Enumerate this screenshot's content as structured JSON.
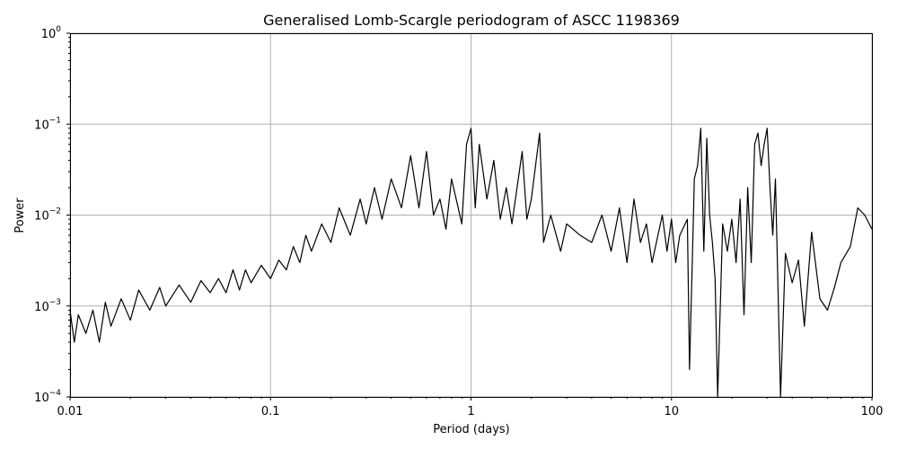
{
  "chart_data": {
    "type": "line",
    "title": "Generalised Lomb-Scargle periodogram of ASCC 1198369",
    "xlabel": "Period (days)",
    "ylabel": "Power",
    "x_scale": "log",
    "y_scale": "log",
    "xlim": [
      0.01,
      100
    ],
    "ylim": [
      0.0001,
      1
    ],
    "grid": true,
    "line_color": "#000000",
    "x_ticks": [
      {
        "value": 0.01,
        "label": "0.01"
      },
      {
        "value": 0.1,
        "label": "0.1"
      },
      {
        "value": 1,
        "label": "1"
      },
      {
        "value": 10,
        "label": "10"
      },
      {
        "value": 100,
        "label": "100"
      }
    ],
    "y_ticks": [
      {
        "value": 0.0001,
        "base": "10",
        "exp": "−4"
      },
      {
        "value": 0.001,
        "base": "10",
        "exp": "−3"
      },
      {
        "value": 0.01,
        "base": "10",
        "exp": "−2"
      },
      {
        "value": 0.1,
        "base": "10",
        "exp": "−1"
      },
      {
        "value": 1,
        "base": "10",
        "exp": "0"
      }
    ],
    "series": [
      {
        "points": [
          [
            0.01,
            0.0009
          ],
          [
            0.0105,
            0.0004
          ],
          [
            0.011,
            0.0008
          ],
          [
            0.012,
            0.0005
          ],
          [
            0.013,
            0.0009
          ],
          [
            0.014,
            0.0004
          ],
          [
            0.015,
            0.0011
          ],
          [
            0.016,
            0.0006
          ],
          [
            0.018,
            0.0012
          ],
          [
            0.02,
            0.0007
          ],
          [
            0.022,
            0.0015
          ],
          [
            0.025,
            0.0009
          ],
          [
            0.028,
            0.0016
          ],
          [
            0.03,
            0.001
          ],
          [
            0.035,
            0.0017
          ],
          [
            0.04,
            0.0011
          ],
          [
            0.045,
            0.0019
          ],
          [
            0.05,
            0.0014
          ],
          [
            0.055,
            0.002
          ],
          [
            0.06,
            0.0014
          ],
          [
            0.065,
            0.0025
          ],
          [
            0.07,
            0.0015
          ],
          [
            0.075,
            0.0025
          ],
          [
            0.08,
            0.0018
          ],
          [
            0.09,
            0.0028
          ],
          [
            0.1,
            0.002
          ],
          [
            0.11,
            0.0032
          ],
          [
            0.12,
            0.0025
          ],
          [
            0.13,
            0.0045
          ],
          [
            0.14,
            0.003
          ],
          [
            0.15,
            0.006
          ],
          [
            0.16,
            0.004
          ],
          [
            0.18,
            0.008
          ],
          [
            0.2,
            0.005
          ],
          [
            0.22,
            0.012
          ],
          [
            0.25,
            0.006
          ],
          [
            0.28,
            0.015
          ],
          [
            0.3,
            0.008
          ],
          [
            0.33,
            0.02
          ],
          [
            0.36,
            0.009
          ],
          [
            0.4,
            0.025
          ],
          [
            0.45,
            0.012
          ],
          [
            0.5,
            0.045
          ],
          [
            0.55,
            0.012
          ],
          [
            0.6,
            0.05
          ],
          [
            0.65,
            0.01
          ],
          [
            0.7,
            0.015
          ],
          [
            0.75,
            0.007
          ],
          [
            0.8,
            0.025
          ],
          [
            0.9,
            0.008
          ],
          [
            0.95,
            0.06
          ],
          [
            1.0,
            0.09
          ],
          [
            1.05,
            0.012
          ],
          [
            1.1,
            0.06
          ],
          [
            1.2,
            0.015
          ],
          [
            1.3,
            0.04
          ],
          [
            1.4,
            0.009
          ],
          [
            1.5,
            0.02
          ],
          [
            1.6,
            0.008
          ],
          [
            1.8,
            0.05
          ],
          [
            1.9,
            0.009
          ],
          [
            2.0,
            0.015
          ],
          [
            2.2,
            0.08
          ],
          [
            2.3,
            0.005
          ],
          [
            2.5,
            0.01
          ],
          [
            2.8,
            0.004
          ],
          [
            3.0,
            0.008
          ],
          [
            3.5,
            0.006
          ],
          [
            4.0,
            0.005
          ],
          [
            4.5,
            0.01
          ],
          [
            5.0,
            0.004
          ],
          [
            5.5,
            0.012
          ],
          [
            6.0,
            0.003
          ],
          [
            6.5,
            0.015
          ],
          [
            7.0,
            0.005
          ],
          [
            7.5,
            0.008
          ],
          [
            8.0,
            0.003
          ],
          [
            9.0,
            0.01
          ],
          [
            9.5,
            0.004
          ],
          [
            10.0,
            0.009
          ],
          [
            10.5,
            0.003
          ],
          [
            11.0,
            0.006
          ],
          [
            12.0,
            0.009
          ],
          [
            12.3,
            0.0002
          ],
          [
            12.8,
            0.006
          ],
          [
            13.0,
            0.025
          ],
          [
            13.5,
            0.035
          ],
          [
            14.0,
            0.09
          ],
          [
            14.5,
            0.004
          ],
          [
            15.0,
            0.07
          ],
          [
            15.5,
            0.01
          ],
          [
            16.0,
            0.005
          ],
          [
            16.5,
            0.002
          ],
          [
            17.0,
            0.0001
          ],
          [
            18.0,
            0.008
          ],
          [
            19.0,
            0.004
          ],
          [
            20.0,
            0.009
          ],
          [
            21.0,
            0.003
          ],
          [
            22.0,
            0.015
          ],
          [
            23.0,
            0.0008
          ],
          [
            24.0,
            0.02
          ],
          [
            25.0,
            0.003
          ],
          [
            26.0,
            0.06
          ],
          [
            27.0,
            0.08
          ],
          [
            28.0,
            0.035
          ],
          [
            29.0,
            0.06
          ],
          [
            30.0,
            0.09
          ],
          [
            31.0,
            0.02
          ],
          [
            32.0,
            0.006
          ],
          [
            33.0,
            0.025
          ],
          [
            35.0,
            0.0001
          ],
          [
            37.0,
            0.0038
          ],
          [
            40.0,
            0.0018
          ],
          [
            43.0,
            0.0032
          ],
          [
            46.0,
            0.0006
          ],
          [
            50.0,
            0.0065
          ],
          [
            55.0,
            0.0012
          ],
          [
            60.0,
            0.0009
          ],
          [
            65.0,
            0.0016
          ],
          [
            70.0,
            0.003
          ],
          [
            78.0,
            0.0045
          ],
          [
            85.0,
            0.012
          ],
          [
            92.0,
            0.01
          ],
          [
            100.0,
            0.007
          ]
        ]
      }
    ]
  }
}
